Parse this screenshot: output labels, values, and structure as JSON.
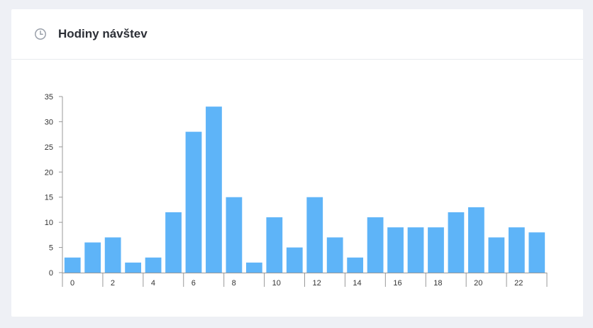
{
  "header": {
    "title": "Hodiny návštev",
    "icon": "clock-icon"
  },
  "colors": {
    "bar": "#5eb4f8",
    "axis": "#999999",
    "text": "#333333"
  },
  "chart_data": {
    "type": "bar",
    "title": "",
    "xlabel": "",
    "ylabel": "",
    "categories": [
      "0",
      "1",
      "2",
      "3",
      "4",
      "5",
      "6",
      "7",
      "8",
      "9",
      "10",
      "11",
      "12",
      "13",
      "14",
      "15",
      "16",
      "17",
      "18",
      "19",
      "20",
      "21",
      "22",
      "23"
    ],
    "x_tick_labels": [
      "0",
      "2",
      "4",
      "6",
      "8",
      "10",
      "12",
      "14",
      "16",
      "18",
      "20",
      "22"
    ],
    "values": [
      3,
      6,
      7,
      2,
      3,
      12,
      28,
      33,
      15,
      2,
      11,
      5,
      15,
      7,
      3,
      11,
      9,
      9,
      9,
      12,
      13,
      7,
      9,
      8
    ],
    "y_ticks": [
      0,
      5,
      10,
      15,
      20,
      25,
      30,
      35
    ],
    "ylim": [
      0,
      35
    ],
    "grid": false,
    "legend": "none"
  }
}
